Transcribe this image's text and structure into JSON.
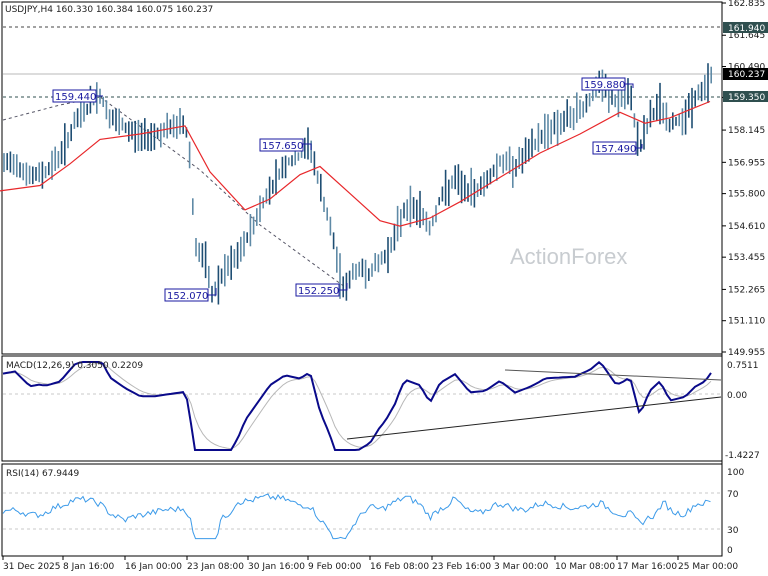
{
  "header": {
    "symbol_text": "USDJPY,H4  160.330 160.384 160.075 160.237",
    "symbol": "USDJPY",
    "timeframe": "H4",
    "open": 160.33,
    "high": 160.384,
    "low": 160.075,
    "close": 160.237
  },
  "watermark": "ActionForex",
  "price_axis": {
    "ticks": [
      "162.835",
      "161.645",
      "160.490",
      "159.350",
      "158.145",
      "156.955",
      "155.800",
      "154.610",
      "153.455",
      "152.265",
      "151.110",
      "149.955"
    ],
    "tick_values": [
      162.835,
      161.645,
      160.49,
      159.35,
      158.145,
      156.955,
      155.8,
      154.61,
      153.455,
      152.265,
      151.11,
      149.955
    ],
    "current_price_label": "160.237",
    "level_labels": [
      "161.940",
      "159.350"
    ]
  },
  "annotations": [
    {
      "label": "159.440",
      "value": 159.44
    },
    {
      "label": "152.070",
      "value": 152.07
    },
    {
      "label": "157.650",
      "value": 157.65
    },
    {
      "label": "152.250",
      "value": 152.25
    },
    {
      "label": "159.880",
      "value": 159.88
    },
    {
      "label": "157.490",
      "value": 157.49
    }
  ],
  "macd": {
    "title": "MACD(12,26,9) 0.3050 0.2209",
    "ticks": [
      "0.7511",
      "0.00",
      "-1.4227"
    ]
  },
  "rsi": {
    "title": "RSI(14) 67.9449",
    "ticks": [
      "100",
      "70",
      "30",
      "0"
    ]
  },
  "time_axis": {
    "labels": [
      "31 Dec 2025",
      "8 Jan 16:00",
      "16 Jan 00:00",
      "23 Jan 08:00",
      "30 Jan 16:00",
      "9 Feb 00:00",
      "16 Feb 08:00",
      "23 Feb 16:00",
      "3 Mar 00:00",
      "10 Mar 08:00",
      "17 Mar 16:00",
      "25 Mar 00:00"
    ]
  },
  "colors": {
    "bars": "#5f8aa6",
    "bars_dark": "#1f4e73",
    "ma": "#e8282b",
    "macd_main": "#0a0a8a",
    "macd_signal": "#b8b8b8",
    "rsi": "#3d9be9",
    "annotation_border": "#1a1aa0",
    "level_box": "#2f4f4f",
    "price_box": "#000000"
  },
  "chart_data": [
    {
      "type": "line",
      "title": "USDJPY,H4",
      "subtitle": "160.330 160.384 160.075 160.237",
      "xlabel": "",
      "ylabel": "",
      "x": [
        "31 Dec 2025",
        "8 Jan 16:00",
        "16 Jan 00:00",
        "23 Jan 08:00",
        "30 Jan 16:00",
        "9 Feb 00:00",
        "16 Feb 08:00",
        "23 Feb 16:00",
        "3 Mar 00:00",
        "10 Mar 08:00",
        "17 Mar 16:00",
        "25 Mar 00:00"
      ],
      "ylim": [
        149.955,
        162.835
      ],
      "grid": false,
      "series": [
        {
          "name": "Price (H4 bars, approx close)",
          "points": [
            [
              0,
              156.8
            ],
            [
              15,
              157.0
            ],
            [
              30,
              156.4
            ],
            [
              45,
              156.6
            ],
            [
              60,
              157.2
            ],
            [
              75,
              158.4
            ],
            [
              90,
              159.1
            ],
            [
              100,
              159.44
            ],
            [
              110,
              158.6
            ],
            [
              125,
              158.2
            ],
            [
              140,
              157.9
            ],
            [
              155,
              158.0
            ],
            [
              170,
              158.2
            ],
            [
              185,
              158.4
            ],
            [
              190,
              157.2
            ],
            [
              195,
              153.9
            ],
            [
              205,
              153.3
            ],
            [
              212,
              152.07
            ],
            [
              225,
              152.9
            ],
            [
              240,
              153.6
            ],
            [
              255,
              154.8
            ],
            [
              270,
              156.0
            ],
            [
              285,
              156.9
            ],
            [
              300,
              157.2
            ],
            [
              310,
              157.65
            ],
            [
              320,
              156.0
            ],
            [
              330,
              154.6
            ],
            [
              340,
              152.8
            ],
            [
              345,
              152.25
            ],
            [
              355,
              153.0
            ],
            [
              370,
              152.9
            ],
            [
              385,
              153.5
            ],
            [
              395,
              154.2
            ],
            [
              405,
              155.3
            ],
            [
              420,
              155.2
            ],
            [
              430,
              154.5
            ],
            [
              440,
              155.6
            ],
            [
              455,
              156.3
            ],
            [
              470,
              155.8
            ],
            [
              485,
              156.2
            ],
            [
              500,
              157.0
            ],
            [
              515,
              156.8
            ],
            [
              530,
              157.4
            ],
            [
              545,
              158.1
            ],
            [
              560,
              158.4
            ],
            [
              575,
              158.7
            ],
            [
              590,
              159.3
            ],
            [
              600,
              159.88
            ],
            [
              615,
              159.2
            ],
            [
              630,
              159.4
            ],
            [
              640,
              157.49
            ],
            [
              650,
              158.6
            ],
            [
              660,
              159.1
            ],
            [
              670,
              158.3
            ],
            [
              685,
              158.7
            ],
            [
              695,
              159.3
            ],
            [
              705,
              159.7
            ],
            [
              712,
              160.237
            ]
          ]
        },
        {
          "name": "Moving Average",
          "points": [
            [
              0,
              155.9
            ],
            [
              40,
              156.1
            ],
            [
              70,
              156.9
            ],
            [
              100,
              157.8
            ],
            [
              140,
              158.0
            ],
            [
              185,
              158.3
            ],
            [
              210,
              156.6
            ],
            [
              245,
              155.2
            ],
            [
              270,
              155.6
            ],
            [
              300,
              156.5
            ],
            [
              320,
              156.8
            ],
            [
              350,
              155.8
            ],
            [
              380,
              154.8
            ],
            [
              400,
              154.6
            ],
            [
              430,
              154.9
            ],
            [
              460,
              155.5
            ],
            [
              500,
              156.4
            ],
            [
              540,
              157.3
            ],
            [
              580,
              158.0
            ],
            [
              620,
              158.8
            ],
            [
              645,
              158.4
            ],
            [
              670,
              158.6
            ],
            [
              690,
              158.9
            ],
            [
              710,
              159.2
            ]
          ]
        }
      ],
      "horizontal_levels": [
        161.94,
        160.237,
        159.35
      ],
      "annotations": [
        "159.440",
        "152.070",
        "157.650",
        "152.250",
        "159.880",
        "157.490"
      ]
    },
    {
      "type": "line",
      "title": "MACD(12,26,9) 0.3050 0.2209",
      "ylim": [
        -1.4227,
        0.7511
      ],
      "y_ticks": [
        0.7511,
        0.0,
        -1.4227
      ],
      "series": [
        {
          "name": "MACD",
          "last": 0.305
        },
        {
          "name": "Signal",
          "last": 0.2209
        }
      ]
    },
    {
      "type": "line",
      "title": "RSI(14) 67.9449",
      "ylim": [
        0,
        100
      ],
      "y_ticks": [
        100,
        70,
        30,
        0
      ],
      "levels": [
        70,
        30
      ],
      "series": [
        {
          "name": "RSI(14)",
          "last": 67.9449
        }
      ]
    }
  ]
}
